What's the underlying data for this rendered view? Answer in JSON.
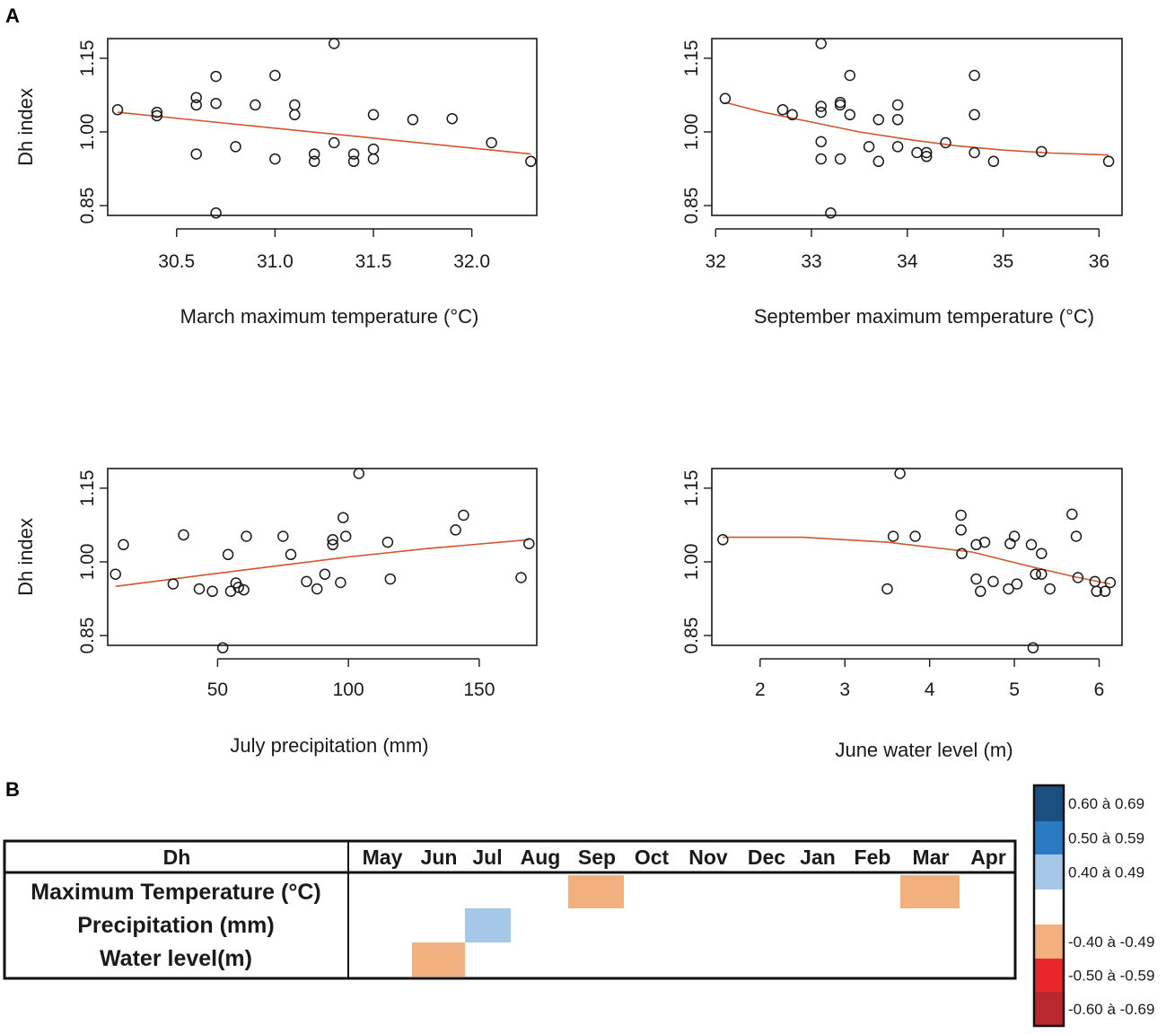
{
  "panel_labels": {
    "a": "A",
    "b": "B"
  },
  "chart_data": [
    {
      "type": "scatter",
      "id": "march",
      "xlabel": "March maximum temperature (°C)",
      "ylabel": "Dh index",
      "xlim": [
        30.15,
        32.33
      ],
      "ylim": [
        0.83,
        1.19
      ],
      "xticks": [
        "30.5",
        "31.0",
        "31.5",
        "32.0"
      ],
      "yticks": [
        "0.85",
        "1.00",
        "1.15"
      ],
      "points": [
        [
          30.2,
          1.045
        ],
        [
          30.4,
          1.04
        ],
        [
          30.4,
          1.033
        ],
        [
          30.6,
          1.07
        ],
        [
          30.6,
          1.055
        ],
        [
          30.6,
          0.955
        ],
        [
          30.7,
          1.113
        ],
        [
          30.7,
          1.058
        ],
        [
          30.7,
          0.835
        ],
        [
          30.8,
          0.97
        ],
        [
          30.9,
          1.055
        ],
        [
          31.0,
          1.115
        ],
        [
          31.0,
          0.945
        ],
        [
          31.1,
          1.055
        ],
        [
          31.1,
          1.035
        ],
        [
          31.2,
          0.955
        ],
        [
          31.2,
          0.94
        ],
        [
          31.3,
          1.18
        ],
        [
          31.3,
          0.978
        ],
        [
          31.4,
          0.955
        ],
        [
          31.4,
          0.94
        ],
        [
          31.5,
          1.035
        ],
        [
          31.5,
          0.965
        ],
        [
          31.5,
          0.945
        ],
        [
          31.7,
          1.025
        ],
        [
          31.9,
          1.027
        ],
        [
          32.1,
          0.978
        ],
        [
          32.3,
          0.94
        ]
      ],
      "fit": [
        [
          30.2,
          1.04
        ],
        [
          32.3,
          0.955
        ]
      ],
      "color": "#d0562f"
    },
    {
      "type": "scatter",
      "id": "september",
      "xlabel": "September maximum temperature (°C)",
      "ylabel": "",
      "xlim": [
        31.96,
        36.24
      ],
      "ylim": [
        0.83,
        1.19
      ],
      "xticks": [
        "32",
        "33",
        "34",
        "35",
        "36"
      ],
      "yticks": [
        "0.85",
        "1.00",
        "1.15"
      ],
      "points": [
        [
          32.1,
          1.068
        ],
        [
          32.7,
          1.045
        ],
        [
          32.8,
          1.035
        ],
        [
          33.1,
          1.18
        ],
        [
          33.1,
          1.052
        ],
        [
          33.1,
          1.04
        ],
        [
          33.1,
          0.98
        ],
        [
          33.1,
          0.945
        ],
        [
          33.2,
          0.835
        ],
        [
          33.3,
          1.06
        ],
        [
          33.3,
          1.055
        ],
        [
          33.3,
          0.945
        ],
        [
          33.4,
          1.115
        ],
        [
          33.4,
          1.035
        ],
        [
          33.6,
          0.97
        ],
        [
          33.7,
          1.025
        ],
        [
          33.7,
          0.94
        ],
        [
          33.9,
          1.055
        ],
        [
          33.9,
          1.025
        ],
        [
          33.9,
          0.97
        ],
        [
          34.1,
          0.958
        ],
        [
          34.2,
          0.958
        ],
        [
          34.2,
          0.95
        ],
        [
          34.4,
          0.978
        ],
        [
          34.7,
          1.115
        ],
        [
          34.7,
          1.035
        ],
        [
          34.7,
          0.958
        ],
        [
          34.9,
          0.94
        ],
        [
          35.4,
          0.96
        ],
        [
          36.1,
          0.94
        ]
      ],
      "fit": [
        [
          32.1,
          1.06
        ],
        [
          32.5,
          1.04
        ],
        [
          33.0,
          1.02
        ],
        [
          33.5,
          1.0
        ],
        [
          34.0,
          0.985
        ],
        [
          34.5,
          0.972
        ],
        [
          35.0,
          0.963
        ],
        [
          35.5,
          0.957
        ],
        [
          36.1,
          0.953
        ]
      ],
      "color": "#d0562f"
    },
    {
      "type": "scatter",
      "id": "july",
      "xlabel": "July precipitation (mm)",
      "ylabel": "Dh index",
      "xlim": [
        8,
        172
      ],
      "ylim": [
        0.83,
        1.19
      ],
      "xticks": [
        "50",
        "100",
        "150"
      ],
      "yticks": [
        "0.85",
        "1.00",
        "1.15"
      ],
      "points": [
        [
          11,
          0.975
        ],
        [
          14,
          1.035
        ],
        [
          33,
          0.955
        ],
        [
          37,
          1.055
        ],
        [
          43,
          0.945
        ],
        [
          48,
          0.94
        ],
        [
          52,
          0.825
        ],
        [
          54,
          1.015
        ],
        [
          55,
          0.94
        ],
        [
          57,
          0.957
        ],
        [
          58,
          0.948
        ],
        [
          60,
          0.943
        ],
        [
          61,
          1.052
        ],
        [
          75,
          1.052
        ],
        [
          78,
          1.015
        ],
        [
          84,
          0.96
        ],
        [
          88,
          0.945
        ],
        [
          91,
          0.975
        ],
        [
          94,
          1.045
        ],
        [
          94,
          1.035
        ],
        [
          97,
          0.958
        ],
        [
          98,
          1.09
        ],
        [
          99,
          1.052
        ],
        [
          104,
          1.18
        ],
        [
          115,
          1.04
        ],
        [
          116,
          0.965
        ],
        [
          141,
          1.065
        ],
        [
          144,
          1.095
        ],
        [
          166,
          0.968
        ],
        [
          169,
          1.037
        ]
      ],
      "fit": [
        [
          11,
          0.95
        ],
        [
          40,
          0.97
        ],
        [
          70,
          0.99
        ],
        [
          100,
          1.01
        ],
        [
          130,
          1.027
        ],
        [
          169,
          1.045
        ]
      ],
      "color": "#d0562f"
    },
    {
      "type": "scatter",
      "id": "june",
      "xlabel": "June water level (m)",
      "ylabel": "",
      "xlim": [
        1.43,
        6.27
      ],
      "ylim": [
        0.83,
        1.19
      ],
      "xticks": [
        "2",
        "3",
        "4",
        "5",
        "6"
      ],
      "yticks": [
        "0.85",
        "1.00",
        "1.15"
      ],
      "points": [
        [
          1.56,
          1.045
        ],
        [
          3.5,
          0.945
        ],
        [
          3.57,
          1.052
        ],
        [
          3.65,
          1.18
        ],
        [
          3.83,
          1.052
        ],
        [
          4.37,
          1.095
        ],
        [
          4.37,
          1.065
        ],
        [
          4.38,
          1.017
        ],
        [
          4.55,
          0.965
        ],
        [
          4.55,
          1.035
        ],
        [
          4.6,
          0.94
        ],
        [
          4.65,
          1.04
        ],
        [
          4.75,
          0.96
        ],
        [
          4.93,
          0.945
        ],
        [
          4.95,
          1.037
        ],
        [
          5.0,
          1.052
        ],
        [
          5.03,
          0.955
        ],
        [
          5.2,
          1.035
        ],
        [
          5.22,
          0.825
        ],
        [
          5.25,
          0.975
        ],
        [
          5.32,
          0.975
        ],
        [
          5.32,
          1.017
        ],
        [
          5.42,
          0.945
        ],
        [
          5.68,
          1.097
        ],
        [
          5.73,
          1.052
        ],
        [
          5.75,
          0.968
        ],
        [
          5.95,
          0.96
        ],
        [
          5.97,
          0.94
        ],
        [
          6.07,
          0.94
        ],
        [
          6.13,
          0.958
        ]
      ],
      "fit": [
        [
          1.56,
          1.05
        ],
        [
          2.5,
          1.05
        ],
        [
          3.5,
          1.04
        ],
        [
          4.5,
          1.02
        ],
        [
          5.2,
          0.99
        ],
        [
          5.7,
          0.97
        ],
        [
          6.13,
          0.955
        ]
      ],
      "color": "#d0562f"
    },
    {
      "type": "heatmap",
      "id": "correlation-table",
      "corner_label": "Dh",
      "columns": [
        "May",
        "Jun",
        "Jul",
        "Aug",
        "Sep",
        "Oct",
        "Nov",
        "Dec",
        "Jan",
        "Feb",
        "Mar",
        "Apr"
      ],
      "rows": [
        "Maximum Temperature (°C)",
        "Precipitation (mm)",
        "Water level(m)"
      ],
      "cells": [
        {
          "row": 0,
          "col": 4,
          "class": "-0.40 à -0.49",
          "color": "#f2b07e"
        },
        {
          "row": 0,
          "col": 10,
          "class": "-0.40 à -0.49",
          "color": "#f2b07e"
        },
        {
          "row": 1,
          "col": 2,
          "class": "0.40 à 0.49",
          "color": "#a6c8e8"
        },
        {
          "row": 2,
          "col": 1,
          "class": "-0.40 à -0.49",
          "color": "#f2b07e"
        }
      ],
      "legend": [
        {
          "label": "0.60 à 0.69",
          "color": "#1b4f7f"
        },
        {
          "label": "0.50 à 0.59",
          "color": "#2a7bc4"
        },
        {
          "label": "0.40 à 0.49",
          "color": "#a6c8e8"
        },
        {
          "label": "",
          "color": "#ffffff"
        },
        {
          "label": "-0.40 à -0.49",
          "color": "#f2b07e"
        },
        {
          "label": "-0.50 à -0.59",
          "color": "#e8262b"
        },
        {
          "label": "-0.60 à -0.69",
          "color": "#b8282e"
        }
      ]
    }
  ]
}
